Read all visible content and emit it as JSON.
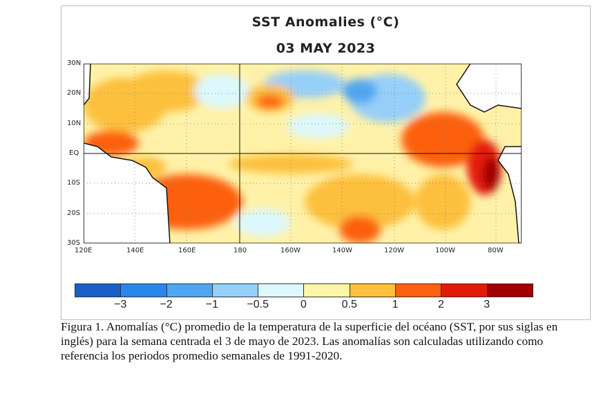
{
  "figure": {
    "title": "SST Anomalies (°C)",
    "date": "03 MAY 2023",
    "lat_ticks": [
      "30N",
      "20N",
      "10N",
      "EQ",
      "10S",
      "20S",
      "30S"
    ],
    "lon_ticks": [
      "120E",
      "140E",
      "160E",
      "180",
      "160W",
      "140W",
      "120W",
      "100W",
      "80W"
    ],
    "colorbar": {
      "colors": [
        "#1a5ec8",
        "#2a86ea",
        "#50a6f0",
        "#96cff8",
        "#dcf8fc",
        "#fff5a8",
        "#fdc03c",
        "#fc6010",
        "#e41a08",
        "#a00000"
      ],
      "labels": [
        "−3",
        "−2",
        "−1",
        "−0.5",
        "0",
        "0.5",
        "1",
        "2",
        "3"
      ]
    }
  },
  "caption": "Figura 1. Anomalías (°C) promedio de la temperatura de la superficie del océano (SST, por sus siglas en inglés) para la semana centrada el 3 de mayo de 2023. Las anomalías son calculadas utilizando como referencia los periodos promedio semanales de 1991-2020."
}
